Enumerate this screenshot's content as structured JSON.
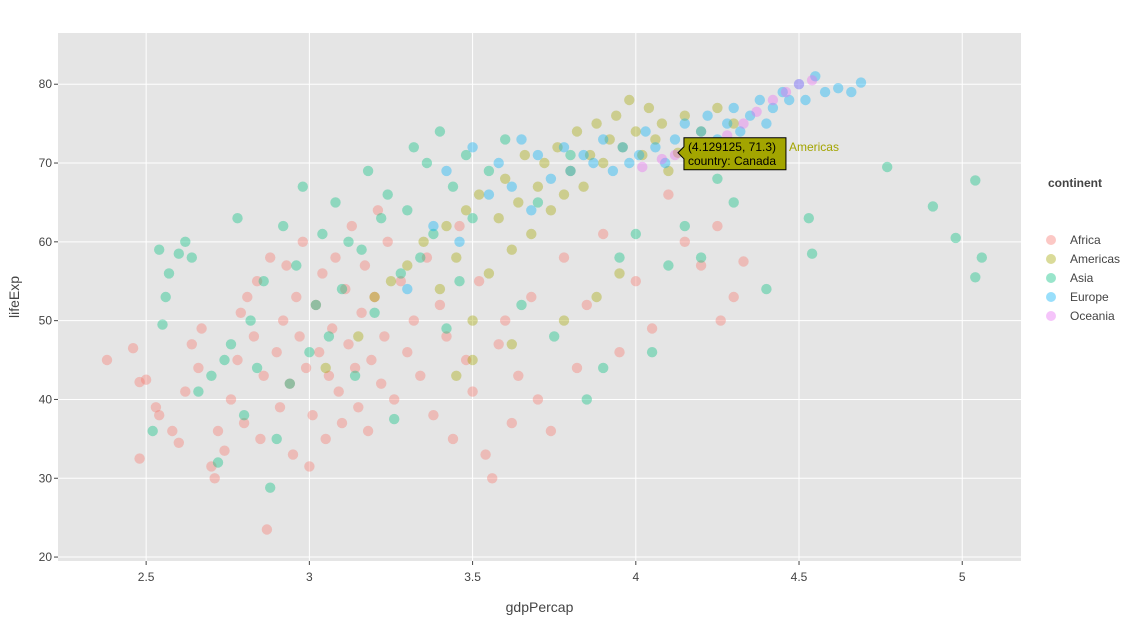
{
  "chart_data": {
    "type": "scatter",
    "xlabel": "gdpPercap",
    "ylabel": "lifeExp",
    "xlim": [
      2.23,
      5.18
    ],
    "ylim": [
      19.5,
      86.5
    ],
    "x_ticks": [
      2.5,
      3,
      3.5,
      4,
      4.5,
      5
    ],
    "x_tick_labels": [
      "2.5",
      "3",
      "3.5",
      "4",
      "4.5",
      "5"
    ],
    "y_ticks": [
      20,
      30,
      40,
      50,
      60,
      70,
      80
    ],
    "y_tick_labels": [
      "20",
      "30",
      "40",
      "50",
      "60",
      "70",
      "80"
    ],
    "grid": true,
    "panel_background": "#e5e5e5",
    "legend": {
      "title": "continent",
      "position": "right"
    },
    "series": [
      {
        "name": "Africa",
        "color": "#f8766d",
        "points": [
          [
            2.38,
            45
          ],
          [
            2.46,
            46.5
          ],
          [
            2.48,
            32.5
          ],
          [
            2.48,
            42.2
          ],
          [
            2.5,
            42.5
          ],
          [
            2.53,
            39
          ],
          [
            2.54,
            38
          ],
          [
            2.58,
            36
          ],
          [
            2.6,
            34.5
          ],
          [
            2.62,
            41
          ],
          [
            2.64,
            47
          ],
          [
            2.66,
            44
          ],
          [
            2.67,
            49
          ],
          [
            2.7,
            31.5
          ],
          [
            2.71,
            30
          ],
          [
            2.72,
            36
          ],
          [
            2.74,
            33.5
          ],
          [
            2.76,
            40
          ],
          [
            2.78,
            45
          ],
          [
            2.79,
            51
          ],
          [
            2.8,
            37
          ],
          [
            2.81,
            53
          ],
          [
            2.83,
            48
          ],
          [
            2.84,
            55
          ],
          [
            2.85,
            35
          ],
          [
            2.86,
            43
          ],
          [
            2.87,
            23.5
          ],
          [
            2.88,
            58
          ],
          [
            2.9,
            46
          ],
          [
            2.91,
            39
          ],
          [
            2.92,
            50
          ],
          [
            2.93,
            57
          ],
          [
            2.94,
            42
          ],
          [
            2.95,
            33
          ],
          [
            2.96,
            53
          ],
          [
            2.97,
            48
          ],
          [
            2.98,
            60
          ],
          [
            2.99,
            44
          ],
          [
            3,
            31.5
          ],
          [
            3.01,
            38
          ],
          [
            3.02,
            52
          ],
          [
            3.03,
            46
          ],
          [
            3.04,
            56
          ],
          [
            3.05,
            35
          ],
          [
            3.06,
            43
          ],
          [
            3.07,
            49
          ],
          [
            3.08,
            58
          ],
          [
            3.09,
            41
          ],
          [
            3.1,
            37
          ],
          [
            3.11,
            54
          ],
          [
            3.12,
            47
          ],
          [
            3.13,
            62
          ],
          [
            3.14,
            44
          ],
          [
            3.15,
            39
          ],
          [
            3.16,
            51
          ],
          [
            3.17,
            57
          ],
          [
            3.18,
            36
          ],
          [
            3.19,
            45
          ],
          [
            3.2,
            53
          ],
          [
            3.21,
            64
          ],
          [
            3.22,
            42
          ],
          [
            3.23,
            48
          ],
          [
            3.24,
            60
          ],
          [
            3.26,
            40
          ],
          [
            3.28,
            55
          ],
          [
            3.3,
            46
          ],
          [
            3.32,
            50
          ],
          [
            3.34,
            43
          ],
          [
            3.36,
            58
          ],
          [
            3.38,
            38
          ],
          [
            3.4,
            52
          ],
          [
            3.42,
            48
          ],
          [
            3.44,
            35
          ],
          [
            3.46,
            62
          ],
          [
            3.48,
            45
          ],
          [
            3.5,
            41
          ],
          [
            3.52,
            55
          ],
          [
            3.54,
            33
          ],
          [
            3.56,
            30
          ],
          [
            3.58,
            47
          ],
          [
            3.6,
            50
          ],
          [
            3.62,
            37
          ],
          [
            3.64,
            43
          ],
          [
            3.68,
            53
          ],
          [
            3.7,
            40
          ],
          [
            3.74,
            36
          ],
          [
            3.78,
            58
          ],
          [
            3.82,
            44
          ],
          [
            3.85,
            52
          ],
          [
            3.9,
            61
          ],
          [
            3.95,
            46
          ],
          [
            4,
            55
          ],
          [
            4.05,
            49
          ],
          [
            4.1,
            66
          ],
          [
            4.15,
            60
          ],
          [
            4.2,
            57
          ],
          [
            4.25,
            62
          ],
          [
            4.3,
            53
          ],
          [
            4.33,
            57.5
          ],
          [
            4.26,
            50
          ]
        ]
      },
      {
        "name": "Americas",
        "color": "#a3a500",
        "points": [
          [
            3.05,
            44
          ],
          [
            3.15,
            48
          ],
          [
            3.2,
            53
          ],
          [
            3.25,
            55
          ],
          [
            3.3,
            57
          ],
          [
            3.35,
            60
          ],
          [
            3.4,
            54
          ],
          [
            3.42,
            62
          ],
          [
            3.45,
            58
          ],
          [
            3.48,
            64
          ],
          [
            3.5,
            50
          ],
          [
            3.52,
            66
          ],
          [
            3.55,
            56
          ],
          [
            3.58,
            63
          ],
          [
            3.6,
            68
          ],
          [
            3.62,
            59
          ],
          [
            3.64,
            65
          ],
          [
            3.66,
            71
          ],
          [
            3.68,
            61
          ],
          [
            3.7,
            67
          ],
          [
            3.72,
            70
          ],
          [
            3.74,
            64
          ],
          [
            3.76,
            72
          ],
          [
            3.78,
            66
          ],
          [
            3.8,
            69
          ],
          [
            3.82,
            74
          ],
          [
            3.84,
            67
          ],
          [
            3.86,
            71
          ],
          [
            3.88,
            75
          ],
          [
            3.9,
            70
          ],
          [
            3.92,
            73
          ],
          [
            3.94,
            76
          ],
          [
            3.96,
            72
          ],
          [
            3.98,
            78
          ],
          [
            4,
            74
          ],
          [
            4.02,
            71
          ],
          [
            4.04,
            77
          ],
          [
            4.06,
            73
          ],
          [
            4.08,
            75
          ],
          [
            4.1,
            69
          ],
          [
            4.129125,
            71.3
          ],
          [
            4.15,
            76
          ],
          [
            4.2,
            74
          ],
          [
            4.25,
            77
          ],
          [
            4.3,
            75
          ],
          [
            3.88,
            53
          ],
          [
            3.95,
            56
          ],
          [
            3.78,
            50
          ],
          [
            3.62,
            47
          ],
          [
            3.5,
            45
          ],
          [
            3.45,
            43
          ]
        ]
      },
      {
        "name": "Asia",
        "color": "#00bf7d",
        "points": [
          [
            2.52,
            36
          ],
          [
            2.54,
            59
          ],
          [
            2.55,
            49.5
          ],
          [
            2.56,
            53
          ],
          [
            2.57,
            56
          ],
          [
            2.6,
            58.5
          ],
          [
            2.62,
            60
          ],
          [
            2.64,
            58
          ],
          [
            2.66,
            41
          ],
          [
            2.7,
            43
          ],
          [
            2.72,
            32
          ],
          [
            2.74,
            45
          ],
          [
            2.76,
            47
          ],
          [
            2.78,
            63
          ],
          [
            2.8,
            38
          ],
          [
            2.82,
            50
          ],
          [
            2.84,
            44
          ],
          [
            2.86,
            55
          ],
          [
            2.88,
            28.8
          ],
          [
            2.9,
            35
          ],
          [
            2.92,
            62
          ],
          [
            2.94,
            42
          ],
          [
            2.96,
            57
          ],
          [
            2.98,
            67
          ],
          [
            3,
            46
          ],
          [
            3.02,
            52
          ],
          [
            3.04,
            61
          ],
          [
            3.06,
            48
          ],
          [
            3.08,
            65
          ],
          [
            3.1,
            54
          ],
          [
            3.12,
            60
          ],
          [
            3.14,
            43
          ],
          [
            3.16,
            59
          ],
          [
            3.18,
            69
          ],
          [
            3.2,
            51
          ],
          [
            3.22,
            63
          ],
          [
            3.24,
            66
          ],
          [
            3.26,
            37.5
          ],
          [
            3.28,
            56
          ],
          [
            3.3,
            64
          ],
          [
            3.32,
            72
          ],
          [
            3.34,
            58
          ],
          [
            3.36,
            70
          ],
          [
            3.38,
            61
          ],
          [
            3.4,
            74
          ],
          [
            3.42,
            49
          ],
          [
            3.44,
            67
          ],
          [
            3.46,
            55
          ],
          [
            3.48,
            71
          ],
          [
            3.5,
            63
          ],
          [
            3.55,
            69
          ],
          [
            3.6,
            73
          ],
          [
            3.65,
            52
          ],
          [
            3.7,
            65
          ],
          [
            3.75,
            48
          ],
          [
            3.8,
            71
          ],
          [
            3.85,
            40
          ],
          [
            3.9,
            44
          ],
          [
            3.95,
            58
          ],
          [
            4,
            61
          ],
          [
            4.05,
            46
          ],
          [
            4.1,
            57
          ],
          [
            4.15,
            62
          ],
          [
            4.2,
            58
          ],
          [
            4.25,
            68
          ],
          [
            4.3,
            65
          ],
          [
            4.4,
            54
          ],
          [
            4.53,
            63
          ],
          [
            4.54,
            58.5
          ],
          [
            4.77,
            69.5
          ],
          [
            4.91,
            64.5
          ],
          [
            4.98,
            60.5
          ],
          [
            5.04,
            55.5
          ],
          [
            5.04,
            67.8
          ],
          [
            5.06,
            58
          ]
        ]
      },
      {
        "name": "Europe",
        "color": "#00b0f6",
        "points": [
          [
            3.3,
            54
          ],
          [
            3.38,
            62
          ],
          [
            3.42,
            69
          ],
          [
            3.46,
            60
          ],
          [
            3.5,
            72
          ],
          [
            3.55,
            66
          ],
          [
            3.58,
            70
          ],
          [
            3.62,
            67
          ],
          [
            3.65,
            73
          ],
          [
            3.68,
            64
          ],
          [
            3.7,
            71
          ],
          [
            3.74,
            68
          ],
          [
            3.78,
            72
          ],
          [
            3.8,
            69
          ],
          [
            3.84,
            71
          ],
          [
            3.87,
            70
          ],
          [
            3.9,
            73
          ],
          [
            3.93,
            69
          ],
          [
            3.96,
            72
          ],
          [
            3.98,
            70
          ],
          [
            4.01,
            71
          ],
          [
            4.03,
            74
          ],
          [
            4.06,
            72
          ],
          [
            4.09,
            70
          ],
          [
            4.12,
            73
          ],
          [
            4.15,
            75
          ],
          [
            4.18,
            72
          ],
          [
            4.2,
            74
          ],
          [
            4.22,
            76
          ],
          [
            4.25,
            73
          ],
          [
            4.28,
            75
          ],
          [
            4.3,
            77
          ],
          [
            4.32,
            74
          ],
          [
            4.35,
            76
          ],
          [
            4.38,
            78
          ],
          [
            4.4,
            75
          ],
          [
            4.42,
            77
          ],
          [
            4.45,
            79
          ],
          [
            4.47,
            78
          ],
          [
            4.5,
            80
          ],
          [
            4.52,
            78
          ],
          [
            4.55,
            81
          ],
          [
            4.58,
            79
          ],
          [
            4.62,
            79.5
          ],
          [
            4.66,
            79
          ],
          [
            4.69,
            80.2
          ]
        ]
      },
      {
        "name": "Oceania",
        "color": "#e76bf3",
        "points": [
          [
            4.02,
            69.5
          ],
          [
            4.08,
            70.5
          ],
          [
            4.12,
            71
          ],
          [
            4.18,
            71.5
          ],
          [
            4.23,
            72
          ],
          [
            4.28,
            73.5
          ],
          [
            4.33,
            75
          ],
          [
            4.37,
            76.5
          ],
          [
            4.42,
            78
          ],
          [
            4.46,
            79
          ],
          [
            4.5,
            80
          ],
          [
            4.54,
            80.5
          ]
        ]
      }
    ]
  },
  "hover": {
    "coords": "(4.129125, 71.3)",
    "country": "country: Canada",
    "series": "Americas",
    "x": 4.129125,
    "y": 71.3,
    "bg_color": "#a3a500",
    "name_color": "#a3a500"
  }
}
